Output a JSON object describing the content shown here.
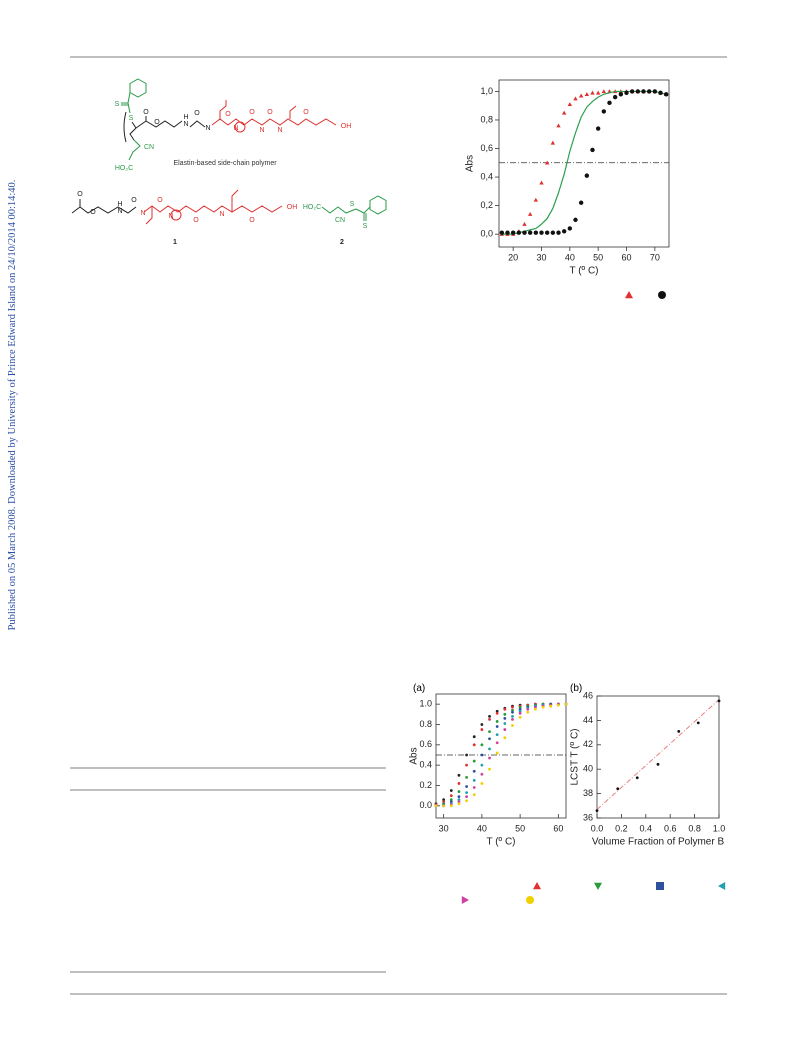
{
  "side_note": "Published on 05 March 2008. Downloaded by University of Prince Edward Island on 24/10/2014 00:14:40.",
  "scheme": {
    "polymer_atoms": [
      "S",
      "S",
      "O",
      "O",
      "N",
      "H",
      "O",
      "N",
      "O",
      "N",
      "O",
      "N",
      "O",
      "N",
      "O",
      "OH",
      "CN",
      "HO₂C"
    ],
    "caption": "Elastin-based side-chain polymer",
    "monomer_atoms": [
      "O",
      "O",
      "N",
      "H",
      "O",
      "N",
      "O",
      "N",
      "O",
      "N",
      "O",
      "OH"
    ],
    "cta_atoms": [
      "HO₂C",
      "CN",
      "S",
      "S"
    ],
    "compound_labels": [
      "1",
      "2"
    ]
  },
  "chart_data": [
    {
      "type": "line",
      "xlabel": "T (º C)",
      "ylabel": "Abs",
      "xlim": [
        15,
        75
      ],
      "ylim": [
        -0.09,
        1.08
      ],
      "xticks": [
        20,
        30,
        40,
        50,
        60,
        70
      ],
      "yticks": [
        {
          "value": 0,
          "label": "0,0"
        },
        {
          "value": 0.2,
          "label": "0,2"
        },
        {
          "value": 0.4,
          "label": "0,4"
        },
        {
          "value": 0.6,
          "label": "0,6"
        },
        {
          "value": 0.8,
          "label": "0,8"
        },
        {
          "value": 1,
          "label": "1,0"
        }
      ],
      "hline": 0.5,
      "x": [
        16,
        18,
        20,
        22,
        24,
        26,
        28,
        30,
        32,
        34,
        36,
        38,
        40,
        42,
        44,
        46,
        48,
        50,
        52,
        54,
        56,
        58,
        60,
        62,
        64,
        66,
        68,
        70,
        72,
        74
      ],
      "series": [
        {
          "color": "#e03030",
          "marker": "triangle",
          "legend_marker": "triangle",
          "values": [
            0,
            0,
            0,
            0.02,
            0.07,
            0.14,
            0.24,
            0.36,
            0.5,
            0.64,
            0.76,
            0.85,
            0.91,
            0.95,
            0.97,
            0.98,
            0.99,
            0.99,
            1,
            1,
            1,
            1,
            1,
            1,
            1,
            1,
            1,
            1,
            0.99,
            0.98
          ]
        },
        {
          "color": "#2aa050",
          "marker": "line",
          "values": [
            0,
            0,
            0,
            0.01,
            0.02,
            0.03,
            0.04,
            0.07,
            0.11,
            0.18,
            0.29,
            0.42,
            0.58,
            0.71,
            0.82,
            0.89,
            0.93,
            0.96,
            0.98,
            0.99,
            1,
            1,
            1,
            1,
            1,
            1,
            1,
            1,
            0.99,
            0.98
          ]
        },
        {
          "color": "#111111",
          "marker": "circle",
          "legend_marker": "circle",
          "values": [
            0.01,
            0.01,
            0.01,
            0.01,
            0.01,
            0.01,
            0.01,
            0.01,
            0.01,
            0.01,
            0.01,
            0.02,
            0.04,
            0.1,
            0.22,
            0.41,
            0.59,
            0.74,
            0.86,
            0.92,
            0.96,
            0.98,
            0.99,
            1,
            1,
            1,
            1,
            1,
            0.99,
            0.98
          ]
        }
      ]
    },
    {
      "type": "scatter",
      "panel": "(a)",
      "xlabel": "T (º C)",
      "ylabel": "Abs",
      "xlim": [
        28,
        62
      ],
      "ylim": [
        -0.12,
        1.1
      ],
      "xticks": [
        30,
        40,
        50,
        60
      ],
      "yticks": [
        {
          "value": 0,
          "label": "0.0"
        },
        0.2,
        0.4,
        0.6,
        0.8,
        {
          "value": 1,
          "label": "1.0"
        }
      ],
      "hline": 0.5,
      "x": [
        28,
        30,
        32,
        34,
        36,
        38,
        40,
        42,
        44,
        46,
        48,
        50,
        52,
        54,
        56,
        58,
        60,
        62
      ],
      "series": [
        {
          "color": "#222222",
          "marker": "dot",
          "values": [
            0.02,
            0.06,
            0.15,
            0.3,
            0.5,
            0.68,
            0.8,
            0.88,
            0.93,
            0.96,
            0.98,
            0.99,
            0.99,
            1,
            1,
            1,
            1,
            1
          ]
        },
        {
          "color": "#e03030",
          "marker": "dot",
          "legend_marker": "triangle",
          "values": [
            0.01,
            0.04,
            0.1,
            0.22,
            0.4,
            0.6,
            0.75,
            0.85,
            0.91,
            0.95,
            0.97,
            0.98,
            0.99,
            1,
            1,
            1,
            1,
            1
          ]
        },
        {
          "color": "#2a9a3a",
          "marker": "dot",
          "legend_marker": "triangle-down",
          "values": [
            0,
            0.02,
            0.06,
            0.14,
            0.28,
            0.44,
            0.6,
            0.73,
            0.83,
            0.9,
            0.94,
            0.97,
            0.98,
            0.99,
            1,
            1,
            1,
            1
          ]
        },
        {
          "color": "#3050a0",
          "marker": "dot",
          "legend_marker": "square",
          "values": [
            0,
            0.01,
            0.04,
            0.09,
            0.19,
            0.34,
            0.5,
            0.66,
            0.78,
            0.86,
            0.92,
            0.95,
            0.97,
            0.98,
            0.99,
            1,
            1,
            1
          ]
        },
        {
          "color": "#20a0b0",
          "marker": "dot",
          "legend_marker": "triangle-left",
          "values": [
            0,
            0,
            0.02,
            0.06,
            0.13,
            0.25,
            0.4,
            0.56,
            0.7,
            0.81,
            0.88,
            0.93,
            0.96,
            0.98,
            0.99,
            0.99,
            1,
            1
          ]
        },
        {
          "color": "#d040a0",
          "marker": "dot",
          "legend_marker": "triangle-right",
          "values": [
            0,
            0,
            0.01,
            0.04,
            0.09,
            0.18,
            0.31,
            0.47,
            0.62,
            0.75,
            0.85,
            0.91,
            0.95,
            0.97,
            0.98,
            0.99,
            1,
            1
          ]
        },
        {
          "color": "#f0d000",
          "marker": "dot",
          "legend_marker": "circle",
          "values": [
            0,
            0,
            0,
            0.02,
            0.05,
            0.11,
            0.22,
            0.36,
            0.52,
            0.67,
            0.79,
            0.87,
            0.92,
            0.95,
            0.97,
            0.98,
            0.99,
            1
          ]
        }
      ]
    },
    {
      "type": "scatter",
      "panel": "(b)",
      "xlabel": "Volume Fraction of Polymer B",
      "ylabel": "LCST T (º C)",
      "xlim": [
        0,
        1
      ],
      "ylim": [
        36,
        46
      ],
      "xticks": [
        {
          "value": 0,
          "label": "0.0"
        },
        0.2,
        0.4,
        0.6,
        0.8,
        {
          "value": 1,
          "label": "1.0"
        }
      ],
      "yticks": [
        36,
        38,
        40,
        42,
        44,
        46
      ],
      "x": [
        0,
        0.17,
        0.33,
        0.5,
        0.67,
        0.83,
        1
      ],
      "series": [
        {
          "color": "#111111",
          "marker": "dot",
          "values": [
            36.6,
            38.4,
            39.3,
            40.4,
            43.1,
            43.8,
            45.6
          ]
        }
      ],
      "fit": {
        "color": "#e88080",
        "x": [
          0,
          1
        ],
        "values": [
          36.7,
          45.7
        ]
      }
    }
  ]
}
